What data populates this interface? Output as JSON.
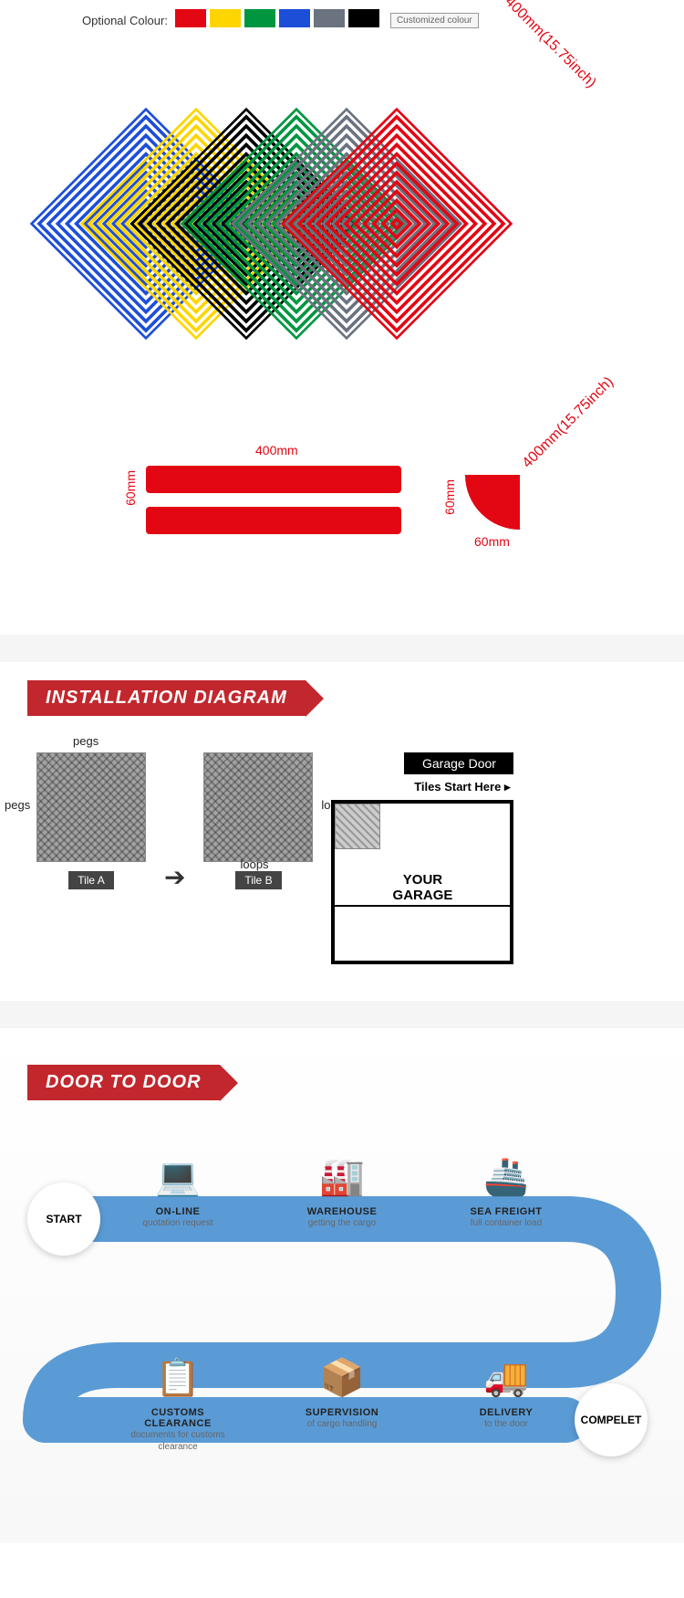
{
  "colours": {
    "label": "Optional Colour:",
    "swatches": [
      "#e30613",
      "#ffd500",
      "#009640",
      "#1d4ed8",
      "#6b7280",
      "#000000"
    ],
    "custom": "Customized colour"
  },
  "tiles": {
    "colors": [
      "#1d4ed8",
      "#ffd500",
      "#000000",
      "#009640",
      "#6b7280",
      "#e30613"
    ],
    "dim_w": "400mm(15.75inch)",
    "dim_h": "400mm(15.75inch)"
  },
  "edges": {
    "strip_w": "400mm",
    "strip_h": "60mm",
    "corner_w": "60mm",
    "corner_h": "60mm",
    "color": "#e30613"
  },
  "install": {
    "banner": "INSTALLATION DIAGRAM",
    "pegs": "pegs",
    "loops": "loops",
    "tile_a": "Tile A",
    "tile_b": "Tile B",
    "garage_door": "Garage Door",
    "tiles_start": "Tiles Start Here ▸",
    "your": "YOUR",
    "garage": "GARAGE"
  },
  "d2d": {
    "banner": "DOOR TO DOOR",
    "start": "START",
    "complete": "COMPELET",
    "path_color": "#5b9bd5",
    "steps": [
      {
        "title": "ON-LINE",
        "sub": "quotation request"
      },
      {
        "title": "WAREHOUSE",
        "sub": "getting the cargo"
      },
      {
        "title": "SEA FREIGHT",
        "sub": "full container load"
      },
      {
        "title": "CUSTOMS CLEARANCE",
        "sub": "documents for customs clearance"
      },
      {
        "title": "SUPERVISION",
        "sub": "of cargo handling"
      },
      {
        "title": "DELIVERY",
        "sub": "to the door"
      }
    ]
  }
}
